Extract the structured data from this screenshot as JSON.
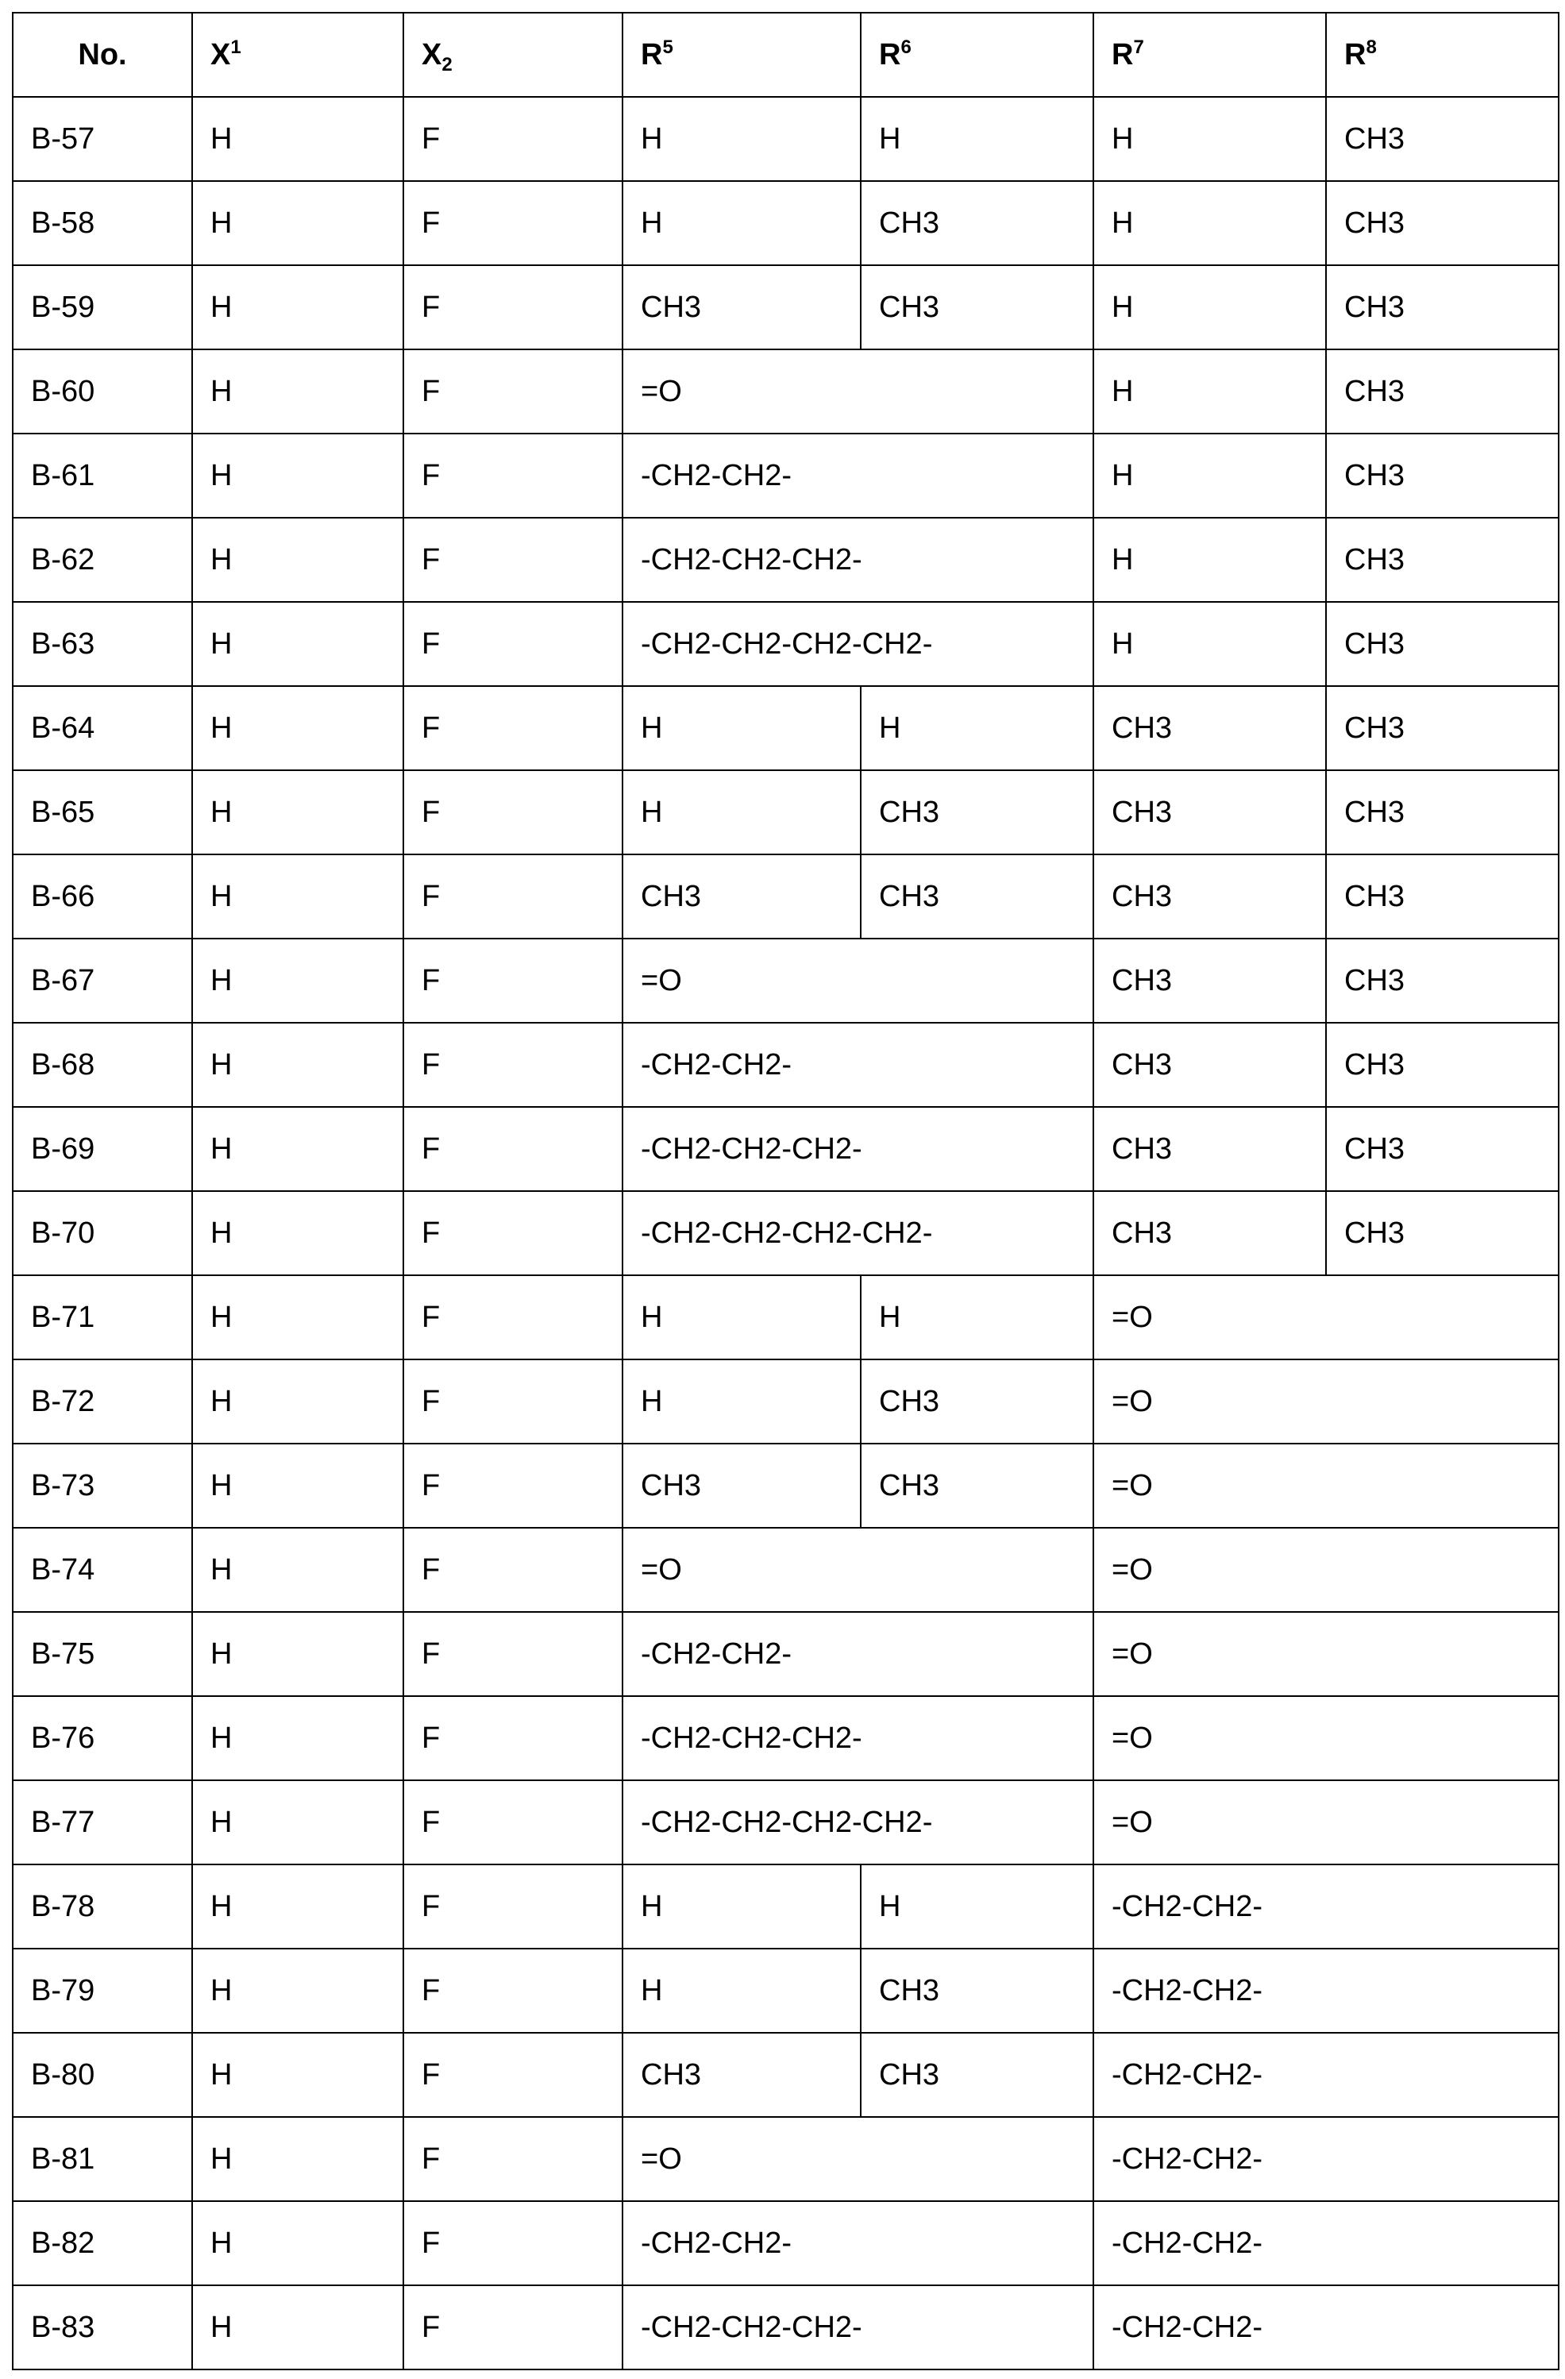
{
  "header": [
    {
      "base": "No.",
      "script": ""
    },
    {
      "base": "X",
      "sup": "1"
    },
    {
      "base": "X",
      "sub": "2"
    },
    {
      "base": "R",
      "sup": "5"
    },
    {
      "base": "R",
      "sup": "6"
    },
    {
      "base": "R",
      "sup": "7"
    },
    {
      "base": "R",
      "sup": "8"
    }
  ],
  "rows": [
    [
      {
        "t": "B-57"
      },
      {
        "t": "H"
      },
      {
        "t": "F"
      },
      {
        "t": "H"
      },
      {
        "t": "H"
      },
      {
        "t": "H"
      },
      {
        "t": "CH3"
      }
    ],
    [
      {
        "t": "B-58"
      },
      {
        "t": "H"
      },
      {
        "t": "F"
      },
      {
        "t": "H"
      },
      {
        "t": "CH3"
      },
      {
        "t": "H"
      },
      {
        "t": "CH3"
      }
    ],
    [
      {
        "t": "B-59"
      },
      {
        "t": "H"
      },
      {
        "t": "F"
      },
      {
        "t": "CH3"
      },
      {
        "t": "CH3"
      },
      {
        "t": "H"
      },
      {
        "t": "CH3"
      }
    ],
    [
      {
        "t": "B-60"
      },
      {
        "t": "H"
      },
      {
        "t": "F"
      },
      {
        "t": "=O",
        "span": 2
      },
      {
        "t": "H"
      },
      {
        "t": "CH3"
      }
    ],
    [
      {
        "t": "B-61"
      },
      {
        "t": "H"
      },
      {
        "t": "F"
      },
      {
        "t": "-CH2-CH2-",
        "span": 2
      },
      {
        "t": "H"
      },
      {
        "t": "CH3"
      }
    ],
    [
      {
        "t": "B-62"
      },
      {
        "t": "H"
      },
      {
        "t": "F"
      },
      {
        "t": "-CH2-CH2-CH2-",
        "span": 2
      },
      {
        "t": "H"
      },
      {
        "t": "CH3"
      }
    ],
    [
      {
        "t": "B-63"
      },
      {
        "t": "H"
      },
      {
        "t": "F"
      },
      {
        "t": "-CH2-CH2-CH2-CH2-",
        "span": 2
      },
      {
        "t": "H"
      },
      {
        "t": "CH3"
      }
    ],
    [
      {
        "t": "B-64"
      },
      {
        "t": "H"
      },
      {
        "t": "F"
      },
      {
        "t": "H"
      },
      {
        "t": "H"
      },
      {
        "t": "CH3"
      },
      {
        "t": "CH3"
      }
    ],
    [
      {
        "t": "B-65"
      },
      {
        "t": "H"
      },
      {
        "t": "F"
      },
      {
        "t": "H"
      },
      {
        "t": "CH3"
      },
      {
        "t": "CH3"
      },
      {
        "t": "CH3"
      }
    ],
    [
      {
        "t": "B-66"
      },
      {
        "t": "H"
      },
      {
        "t": "F"
      },
      {
        "t": "CH3"
      },
      {
        "t": "CH3"
      },
      {
        "t": "CH3"
      },
      {
        "t": "CH3"
      }
    ],
    [
      {
        "t": "B-67"
      },
      {
        "t": "H"
      },
      {
        "t": "F"
      },
      {
        "t": "=O",
        "span": 2
      },
      {
        "t": "CH3"
      },
      {
        "t": "CH3"
      }
    ],
    [
      {
        "t": "B-68"
      },
      {
        "t": "H"
      },
      {
        "t": "F"
      },
      {
        "t": "-CH2-CH2-",
        "span": 2
      },
      {
        "t": "CH3"
      },
      {
        "t": "CH3"
      }
    ],
    [
      {
        "t": "B-69"
      },
      {
        "t": "H"
      },
      {
        "t": "F"
      },
      {
        "t": "-CH2-CH2-CH2-",
        "span": 2
      },
      {
        "t": "CH3"
      },
      {
        "t": "CH3"
      }
    ],
    [
      {
        "t": "B-70"
      },
      {
        "t": "H"
      },
      {
        "t": "F"
      },
      {
        "t": "-CH2-CH2-CH2-CH2-",
        "span": 2
      },
      {
        "t": "CH3"
      },
      {
        "t": "CH3"
      }
    ],
    [
      {
        "t": "B-71"
      },
      {
        "t": "H"
      },
      {
        "t": "F"
      },
      {
        "t": "H"
      },
      {
        "t": "H"
      },
      {
        "t": "=O",
        "span": 2
      }
    ],
    [
      {
        "t": "B-72"
      },
      {
        "t": "H"
      },
      {
        "t": "F"
      },
      {
        "t": "H"
      },
      {
        "t": "CH3"
      },
      {
        "t": "=O",
        "span": 2
      }
    ],
    [
      {
        "t": "B-73"
      },
      {
        "t": "H"
      },
      {
        "t": "F"
      },
      {
        "t": "CH3"
      },
      {
        "t": "CH3"
      },
      {
        "t": "=O",
        "span": 2
      }
    ],
    [
      {
        "t": "B-74"
      },
      {
        "t": "H"
      },
      {
        "t": "F"
      },
      {
        "t": "=O",
        "span": 2
      },
      {
        "t": "=O",
        "span": 2
      }
    ],
    [
      {
        "t": "B-75"
      },
      {
        "t": "H"
      },
      {
        "t": "F"
      },
      {
        "t": "-CH2-CH2-",
        "span": 2
      },
      {
        "t": "=O",
        "span": 2
      }
    ],
    [
      {
        "t": "B-76"
      },
      {
        "t": "H"
      },
      {
        "t": "F"
      },
      {
        "t": "-CH2-CH2-CH2-",
        "span": 2
      },
      {
        "t": "=O",
        "span": 2
      }
    ],
    [
      {
        "t": "B-77"
      },
      {
        "t": "H"
      },
      {
        "t": "F"
      },
      {
        "t": "-CH2-CH2-CH2-CH2-",
        "span": 2
      },
      {
        "t": "=O",
        "span": 2
      }
    ],
    [
      {
        "t": "B-78"
      },
      {
        "t": "H"
      },
      {
        "t": "F"
      },
      {
        "t": "H"
      },
      {
        "t": "H"
      },
      {
        "t": "-CH2-CH2-",
        "span": 2
      }
    ],
    [
      {
        "t": "B-79"
      },
      {
        "t": "H"
      },
      {
        "t": "F"
      },
      {
        "t": "H"
      },
      {
        "t": "CH3"
      },
      {
        "t": "-CH2-CH2-",
        "span": 2
      }
    ],
    [
      {
        "t": "B-80"
      },
      {
        "t": "H"
      },
      {
        "t": "F"
      },
      {
        "t": "CH3"
      },
      {
        "t": "CH3"
      },
      {
        "t": "-CH2-CH2-",
        "span": 2
      }
    ],
    [
      {
        "t": "B-81"
      },
      {
        "t": "H"
      },
      {
        "t": "F"
      },
      {
        "t": "=O",
        "span": 2
      },
      {
        "t": "-CH2-CH2-",
        "span": 2
      }
    ],
    [
      {
        "t": "B-82"
      },
      {
        "t": "H"
      },
      {
        "t": "F"
      },
      {
        "t": "-CH2-CH2-",
        "span": 2
      },
      {
        "t": "-CH2-CH2-",
        "span": 2
      }
    ],
    [
      {
        "t": "B-83"
      },
      {
        "t": "H"
      },
      {
        "t": "F"
      },
      {
        "t": "-CH2-CH2-CH2-",
        "span": 2
      },
      {
        "t": "-CH2-CH2-",
        "span": 2
      }
    ]
  ]
}
